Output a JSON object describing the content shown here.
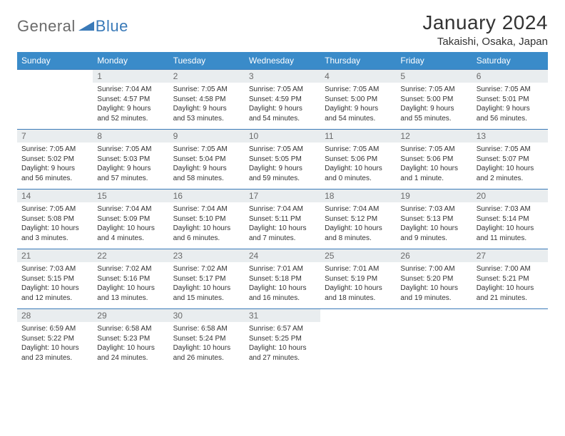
{
  "logo": {
    "text1": "General",
    "text2": "Blue",
    "triangle_color": "#3a7ab8"
  },
  "title": "January 2024",
  "location": "Takaishi, Osaka, Japan",
  "colors": {
    "header_bg": "#3a8bc9",
    "header_text": "#ffffff",
    "daynum_bg": "#e9edef",
    "daynum_text": "#6a6a6a",
    "row_border": "#3a7ab8",
    "body_text": "#333333"
  },
  "weekdays": [
    "Sunday",
    "Monday",
    "Tuesday",
    "Wednesday",
    "Thursday",
    "Friday",
    "Saturday"
  ],
  "weeks": [
    [
      {
        "empty": true
      },
      {
        "num": "1",
        "sunrise": "Sunrise: 7:04 AM",
        "sunset": "Sunset: 4:57 PM",
        "day1": "Daylight: 9 hours",
        "day2": "and 52 minutes."
      },
      {
        "num": "2",
        "sunrise": "Sunrise: 7:05 AM",
        "sunset": "Sunset: 4:58 PM",
        "day1": "Daylight: 9 hours",
        "day2": "and 53 minutes."
      },
      {
        "num": "3",
        "sunrise": "Sunrise: 7:05 AM",
        "sunset": "Sunset: 4:59 PM",
        "day1": "Daylight: 9 hours",
        "day2": "and 54 minutes."
      },
      {
        "num": "4",
        "sunrise": "Sunrise: 7:05 AM",
        "sunset": "Sunset: 5:00 PM",
        "day1": "Daylight: 9 hours",
        "day2": "and 54 minutes."
      },
      {
        "num": "5",
        "sunrise": "Sunrise: 7:05 AM",
        "sunset": "Sunset: 5:00 PM",
        "day1": "Daylight: 9 hours",
        "day2": "and 55 minutes."
      },
      {
        "num": "6",
        "sunrise": "Sunrise: 7:05 AM",
        "sunset": "Sunset: 5:01 PM",
        "day1": "Daylight: 9 hours",
        "day2": "and 56 minutes."
      }
    ],
    [
      {
        "num": "7",
        "sunrise": "Sunrise: 7:05 AM",
        "sunset": "Sunset: 5:02 PM",
        "day1": "Daylight: 9 hours",
        "day2": "and 56 minutes."
      },
      {
        "num": "8",
        "sunrise": "Sunrise: 7:05 AM",
        "sunset": "Sunset: 5:03 PM",
        "day1": "Daylight: 9 hours",
        "day2": "and 57 minutes."
      },
      {
        "num": "9",
        "sunrise": "Sunrise: 7:05 AM",
        "sunset": "Sunset: 5:04 PM",
        "day1": "Daylight: 9 hours",
        "day2": "and 58 minutes."
      },
      {
        "num": "10",
        "sunrise": "Sunrise: 7:05 AM",
        "sunset": "Sunset: 5:05 PM",
        "day1": "Daylight: 9 hours",
        "day2": "and 59 minutes."
      },
      {
        "num": "11",
        "sunrise": "Sunrise: 7:05 AM",
        "sunset": "Sunset: 5:06 PM",
        "day1": "Daylight: 10 hours",
        "day2": "and 0 minutes."
      },
      {
        "num": "12",
        "sunrise": "Sunrise: 7:05 AM",
        "sunset": "Sunset: 5:06 PM",
        "day1": "Daylight: 10 hours",
        "day2": "and 1 minute."
      },
      {
        "num": "13",
        "sunrise": "Sunrise: 7:05 AM",
        "sunset": "Sunset: 5:07 PM",
        "day1": "Daylight: 10 hours",
        "day2": "and 2 minutes."
      }
    ],
    [
      {
        "num": "14",
        "sunrise": "Sunrise: 7:05 AM",
        "sunset": "Sunset: 5:08 PM",
        "day1": "Daylight: 10 hours",
        "day2": "and 3 minutes."
      },
      {
        "num": "15",
        "sunrise": "Sunrise: 7:04 AM",
        "sunset": "Sunset: 5:09 PM",
        "day1": "Daylight: 10 hours",
        "day2": "and 4 minutes."
      },
      {
        "num": "16",
        "sunrise": "Sunrise: 7:04 AM",
        "sunset": "Sunset: 5:10 PM",
        "day1": "Daylight: 10 hours",
        "day2": "and 6 minutes."
      },
      {
        "num": "17",
        "sunrise": "Sunrise: 7:04 AM",
        "sunset": "Sunset: 5:11 PM",
        "day1": "Daylight: 10 hours",
        "day2": "and 7 minutes."
      },
      {
        "num": "18",
        "sunrise": "Sunrise: 7:04 AM",
        "sunset": "Sunset: 5:12 PM",
        "day1": "Daylight: 10 hours",
        "day2": "and 8 minutes."
      },
      {
        "num": "19",
        "sunrise": "Sunrise: 7:03 AM",
        "sunset": "Sunset: 5:13 PM",
        "day1": "Daylight: 10 hours",
        "day2": "and 9 minutes."
      },
      {
        "num": "20",
        "sunrise": "Sunrise: 7:03 AM",
        "sunset": "Sunset: 5:14 PM",
        "day1": "Daylight: 10 hours",
        "day2": "and 11 minutes."
      }
    ],
    [
      {
        "num": "21",
        "sunrise": "Sunrise: 7:03 AM",
        "sunset": "Sunset: 5:15 PM",
        "day1": "Daylight: 10 hours",
        "day2": "and 12 minutes."
      },
      {
        "num": "22",
        "sunrise": "Sunrise: 7:02 AM",
        "sunset": "Sunset: 5:16 PM",
        "day1": "Daylight: 10 hours",
        "day2": "and 13 minutes."
      },
      {
        "num": "23",
        "sunrise": "Sunrise: 7:02 AM",
        "sunset": "Sunset: 5:17 PM",
        "day1": "Daylight: 10 hours",
        "day2": "and 15 minutes."
      },
      {
        "num": "24",
        "sunrise": "Sunrise: 7:01 AM",
        "sunset": "Sunset: 5:18 PM",
        "day1": "Daylight: 10 hours",
        "day2": "and 16 minutes."
      },
      {
        "num": "25",
        "sunrise": "Sunrise: 7:01 AM",
        "sunset": "Sunset: 5:19 PM",
        "day1": "Daylight: 10 hours",
        "day2": "and 18 minutes."
      },
      {
        "num": "26",
        "sunrise": "Sunrise: 7:00 AM",
        "sunset": "Sunset: 5:20 PM",
        "day1": "Daylight: 10 hours",
        "day2": "and 19 minutes."
      },
      {
        "num": "27",
        "sunrise": "Sunrise: 7:00 AM",
        "sunset": "Sunset: 5:21 PM",
        "day1": "Daylight: 10 hours",
        "day2": "and 21 minutes."
      }
    ],
    [
      {
        "num": "28",
        "sunrise": "Sunrise: 6:59 AM",
        "sunset": "Sunset: 5:22 PM",
        "day1": "Daylight: 10 hours",
        "day2": "and 23 minutes."
      },
      {
        "num": "29",
        "sunrise": "Sunrise: 6:58 AM",
        "sunset": "Sunset: 5:23 PM",
        "day1": "Daylight: 10 hours",
        "day2": "and 24 minutes."
      },
      {
        "num": "30",
        "sunrise": "Sunrise: 6:58 AM",
        "sunset": "Sunset: 5:24 PM",
        "day1": "Daylight: 10 hours",
        "day2": "and 26 minutes."
      },
      {
        "num": "31",
        "sunrise": "Sunrise: 6:57 AM",
        "sunset": "Sunset: 5:25 PM",
        "day1": "Daylight: 10 hours",
        "day2": "and 27 minutes."
      },
      {
        "empty": true
      },
      {
        "empty": true
      },
      {
        "empty": true
      }
    ]
  ]
}
